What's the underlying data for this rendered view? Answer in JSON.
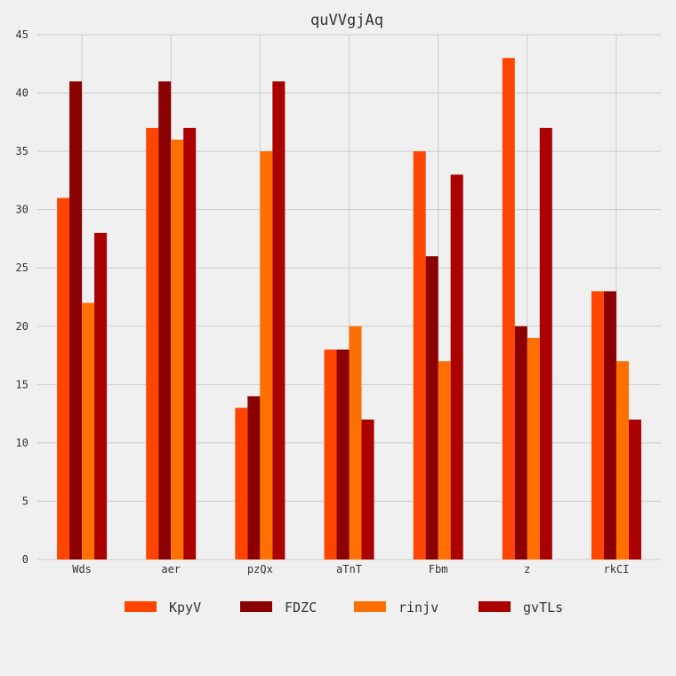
{
  "chart_data": {
    "type": "bar",
    "title": "quVVgjAq",
    "xlabel": "",
    "ylabel": "",
    "categories": [
      "Wds",
      "aer",
      "pzQx",
      "aTnT",
      "Fbm",
      "z",
      "rkCI"
    ],
    "ylim": [
      0,
      45
    ],
    "yticks": [
      0,
      5,
      10,
      15,
      20,
      25,
      30,
      35,
      40,
      45
    ],
    "grid": true,
    "legend_position": "bottom",
    "series": [
      {
        "name": "KpyV",
        "color": "#ff4500",
        "values": [
          31,
          37,
          13,
          18,
          35,
          43,
          23
        ]
      },
      {
        "name": "FDZC",
        "color": "#8b0000",
        "values": [
          41,
          41,
          14,
          18,
          26,
          20,
          23
        ]
      },
      {
        "name": "rinjv",
        "color": "#ff7000",
        "values": [
          22,
          36,
          35,
          20,
          17,
          19,
          17
        ]
      },
      {
        "name": "gvTLs",
        "color": "#aa0000",
        "values": [
          28,
          37,
          41,
          12,
          33,
          37,
          12
        ]
      }
    ]
  }
}
